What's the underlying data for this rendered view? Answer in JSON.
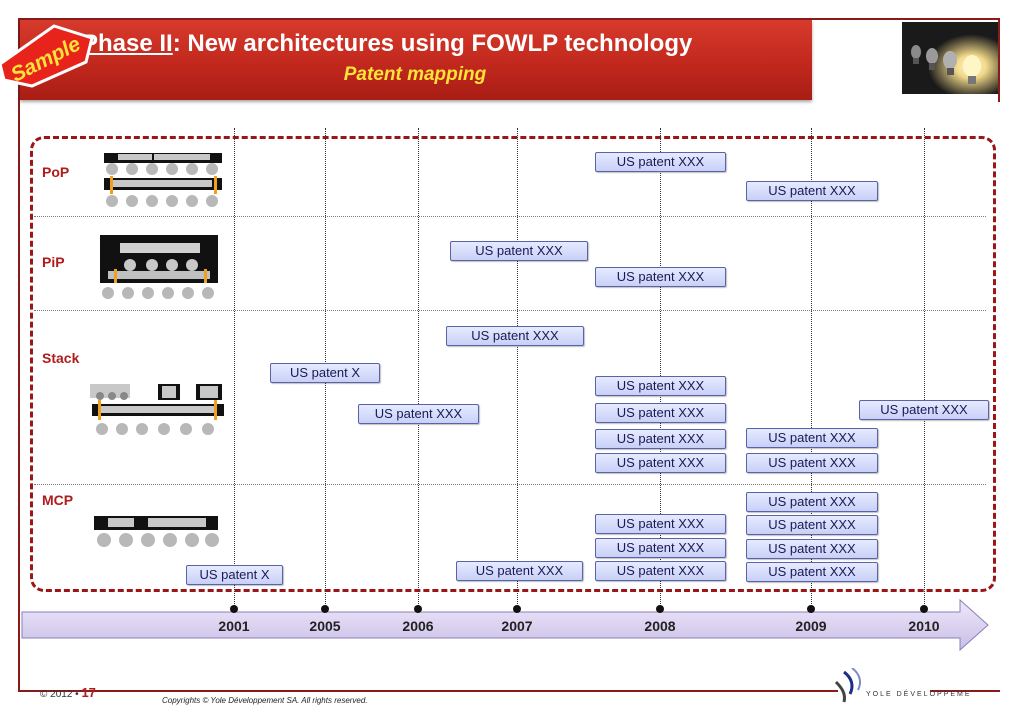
{
  "sample_stamp": "Sample",
  "header": {
    "title_underlined": "Phase II",
    "title_rest": ": New architectures using FOWLP technology",
    "subtitle": "Patent mapping"
  },
  "rows": [
    {
      "label": "PoP"
    },
    {
      "label": "PiP"
    },
    {
      "label": "Stack"
    },
    {
      "label": "MCP"
    }
  ],
  "years": [
    "2001",
    "2005",
    "2006",
    "2007",
    "2008",
    "2009",
    "2010"
  ],
  "patents": {
    "pop_1": "US patent XXX",
    "pop_2": "US patent XXX",
    "pip_1": "US patent XXX",
    "pip_2": "US patent XXX",
    "stack_1": "US patent XXX",
    "stack_2": "US patent X",
    "stack_3": "US patent XXX",
    "stack_4": "US patent XXX",
    "stack_5": "US patent XXX",
    "stack_6": "US patent XXX",
    "stack_7": "US patent XXX",
    "stack_8": "US patent XXX",
    "stack_9": "US patent XXX",
    "stack_10": "US patent XXX",
    "mcp_1": "US patent XXX",
    "mcp_2": "US patent XXX",
    "mcp_3": "US patent XXX",
    "mcp_4": "US patent XXX",
    "mcp_5": "US patent XXX",
    "mcp_6": "US patent XXX",
    "mcp_7": "US patent X",
    "mcp_8": "US patent XXX",
    "mcp_9": "US patent XXX"
  },
  "footer": {
    "copyright": "© 2012 •",
    "page_number": "17",
    "rights": "Copyrights © Yole Développement SA. All rights reserved.",
    "logo_text": "YOLE DÉVELOPPEMENT"
  },
  "colors": {
    "accent": "#c2281d",
    "patent_fill": "#d6dcfa",
    "timeline": "#d8cdf0"
  }
}
